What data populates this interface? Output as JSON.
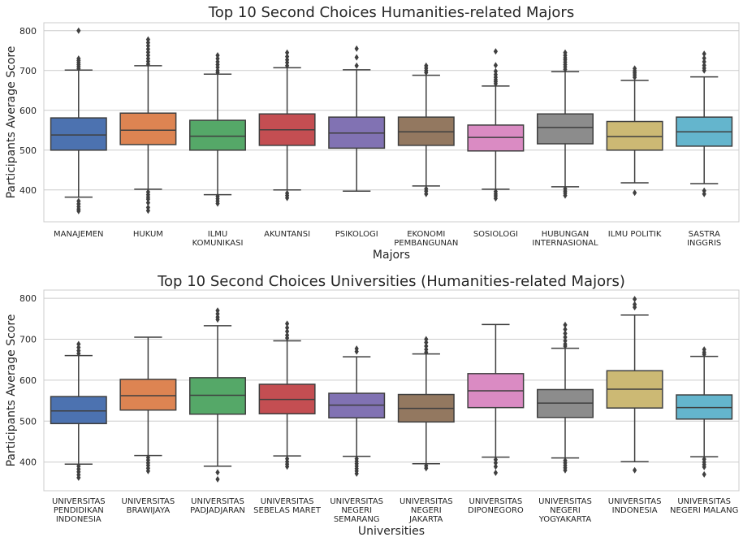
{
  "chart_data": [
    {
      "type": "box",
      "title": "Top 10 Second Choices Humanities-related Majors",
      "xlabel": "Majors",
      "ylabel": "Participants Average Score",
      "ylim": [
        320,
        820
      ],
      "yticks": [
        400,
        500,
        600,
        700,
        800
      ],
      "grid": "horizontal",
      "categories": [
        [
          "MANAJEMEN"
        ],
        [
          "HUKUM"
        ],
        [
          "ILMU",
          "KOMUNIKASI"
        ],
        [
          "AKUNTANSI"
        ],
        [
          "PSIKOLOGI"
        ],
        [
          "EKONOMI",
          "PEMBANGUNAN"
        ],
        [
          "SOSIOLOGI"
        ],
        [
          "HUBUNGAN",
          "INTERNASIONAL"
        ],
        [
          "ILMU POLITIK"
        ],
        [
          "SASTRA",
          "INGGRIS"
        ]
      ],
      "colors": [
        "#4c72b0",
        "#dd8452",
        "#55a868",
        "#c44e52",
        "#8172b3",
        "#937860",
        "#da8bc3",
        "#8c8c8c",
        "#ccb974",
        "#64b5cd"
      ],
      "boxes": [
        {
          "whislo": 382,
          "q1": 500,
          "med": 538,
          "q3": 581,
          "whishi": 701,
          "fliers": [
            800,
            730,
            725,
            720,
            715,
            710,
            705,
            372,
            365,
            358,
            352,
            347
          ]
        },
        {
          "whislo": 402,
          "q1": 514,
          "med": 550,
          "q3": 593,
          "whishi": 712,
          "fliers": [
            778,
            770,
            762,
            754,
            746,
            738,
            730,
            723,
            716,
            395,
            388,
            382,
            377,
            368,
            356,
            348
          ]
        },
        {
          "whislo": 388,
          "q1": 500,
          "med": 535,
          "q3": 575,
          "whishi": 691,
          "fliers": [
            738,
            730,
            722,
            715,
            708,
            700,
            695,
            384,
            378,
            372,
            366
          ]
        },
        {
          "whislo": 400,
          "q1": 512,
          "med": 551,
          "q3": 591,
          "whishi": 707,
          "fliers": [
            745,
            735,
            727,
            720,
            712,
            392,
            386,
            380
          ]
        },
        {
          "whislo": 397,
          "q1": 505,
          "med": 543,
          "q3": 583,
          "whishi": 702,
          "fliers": [
            755,
            733,
            712
          ]
        },
        {
          "whislo": 410,
          "q1": 512,
          "med": 546,
          "q3": 583,
          "whishi": 688,
          "fliers": [
            712,
            706,
            700,
            695,
            403,
            397,
            390
          ]
        },
        {
          "whislo": 402,
          "q1": 498,
          "med": 532,
          "q3": 563,
          "whishi": 661,
          "fliers": [
            748,
            713,
            698,
            690,
            683,
            677,
            672,
            667,
            396,
            390,
            385,
            379
          ]
        },
        {
          "whislo": 408,
          "q1": 516,
          "med": 557,
          "q3": 591,
          "whishi": 697,
          "fliers": [
            745,
            738,
            732,
            727,
            721,
            715,
            709,
            703,
            403,
            397,
            392,
            386
          ]
        },
        {
          "whislo": 418,
          "q1": 500,
          "med": 534,
          "q3": 572,
          "whishi": 675,
          "fliers": [
            705,
            699,
            694,
            689,
            683,
            393
          ]
        },
        {
          "whislo": 416,
          "q1": 510,
          "med": 546,
          "q3": 583,
          "whishi": 684,
          "fliers": [
            742,
            731,
            722,
            713,
            706,
            700,
            398,
            390
          ]
        }
      ]
    },
    {
      "type": "box",
      "title": "Top 10 Second Choices Universities (Humanities-related Majors)",
      "xlabel": "Universities",
      "ylabel": "Participants Average Score",
      "ylim": [
        330,
        820
      ],
      "yticks": [
        400,
        500,
        600,
        700,
        800
      ],
      "grid": "horizontal",
      "categories": [
        [
          "UNIVERSITAS",
          "PENDIDIKAN",
          "INDONESIA"
        ],
        [
          "UNIVERSITAS",
          "BRAWIJAYA"
        ],
        [
          "UNIVERSITAS",
          "PADJADJARAN"
        ],
        [
          "UNIVERSITAS",
          "SEBELAS MARET"
        ],
        [
          "UNIVERSITAS",
          "NEGERI",
          "SEMARANG"
        ],
        [
          "UNIVERSITAS",
          "NEGERI",
          "JAKARTA"
        ],
        [
          "UNIVERSITAS",
          "DIPONEGORO"
        ],
        [
          "UNIVERSITAS",
          "NEGERI",
          "YOGYAKARTA"
        ],
        [
          "UNIVERSITAS",
          "INDONESIA"
        ],
        [
          "UNIVERSITAS",
          "NEGERI MALANG"
        ]
      ],
      "colors": [
        "#4c72b0",
        "#dd8452",
        "#55a868",
        "#c44e52",
        "#8172b3",
        "#937860",
        "#da8bc3",
        "#8c8c8c",
        "#ccb974",
        "#64b5cd"
      ],
      "boxes": [
        {
          "whislo": 395,
          "q1": 494,
          "med": 525,
          "q3": 560,
          "whishi": 660,
          "fliers": [
            688,
            680,
            672,
            665,
            390,
            383,
            376,
            369,
            362
          ]
        },
        {
          "whislo": 416,
          "q1": 527,
          "med": 562,
          "q3": 602,
          "whishi": 705,
          "fliers": [
            411,
            405,
            398,
            392,
            385,
            378
          ]
        },
        {
          "whislo": 390,
          "q1": 517,
          "med": 563,
          "q3": 606,
          "whishi": 733,
          "fliers": [
            770,
            762,
            754,
            748,
            375,
            358
          ]
        },
        {
          "whislo": 415,
          "q1": 518,
          "med": 553,
          "q3": 590,
          "whishi": 696,
          "fliers": [
            738,
            728,
            719,
            710,
            703,
            408,
            401,
            395,
            389
          ]
        },
        {
          "whislo": 414,
          "q1": 508,
          "med": 539,
          "q3": 568,
          "whishi": 657,
          "fliers": [
            677,
            670,
            408,
            402,
            396,
            390,
            384,
            378,
            372
          ]
        },
        {
          "whislo": 396,
          "q1": 498,
          "med": 531,
          "q3": 565,
          "whishi": 664,
          "fliers": [
            700,
            692,
            683,
            675,
            668,
            391,
            385
          ]
        },
        {
          "whislo": 412,
          "q1": 533,
          "med": 574,
          "q3": 616,
          "whishi": 736,
          "fliers": [
            406,
            398,
            389,
            374
          ]
        },
        {
          "whislo": 410,
          "q1": 509,
          "med": 544,
          "q3": 577,
          "whishi": 678,
          "fliers": [
            735,
            724,
            714,
            705,
            696,
            688,
            683,
            404,
            398,
            392,
            386,
            380
          ]
        },
        {
          "whislo": 401,
          "q1": 532,
          "med": 578,
          "q3": 623,
          "whishi": 759,
          "fliers": [
            798,
            785,
            778,
            380
          ]
        },
        {
          "whislo": 413,
          "q1": 505,
          "med": 533,
          "q3": 564,
          "whishi": 658,
          "fliers": [
            675,
            668,
            663,
            407,
            400,
            394,
            388,
            370
          ]
        }
      ]
    }
  ]
}
